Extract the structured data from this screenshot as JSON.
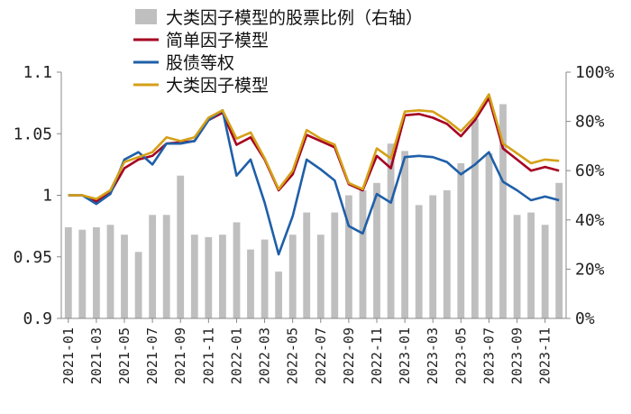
{
  "chart_data": {
    "type": "line",
    "title": "",
    "xlabel": "",
    "ylabel": "",
    "categories": [
      "2021-01",
      "2021-02",
      "2021-03",
      "2021-04",
      "2021-05",
      "2021-06",
      "2021-07",
      "2021-08",
      "2021-09",
      "2021-10",
      "2021-11",
      "2021-12",
      "2022-01",
      "2022-02",
      "2022-03",
      "2022-04",
      "2022-05",
      "2022-06",
      "2022-07",
      "2022-08",
      "2022-09",
      "2022-10",
      "2022-11",
      "2022-12",
      "2023-01",
      "2023-02",
      "2023-03",
      "2023-04",
      "2023-05",
      "2023-06",
      "2023-07",
      "2023-08",
      "2023-09",
      "2023-10",
      "2023-11",
      "2023-12"
    ],
    "x_tick_labels": [
      "2021-01",
      "2021-03",
      "2021-05",
      "2021-07",
      "2021-09",
      "2021-11",
      "2022-01",
      "2022-03",
      "2022-05",
      "2022-07",
      "2022-09",
      "2022-11",
      "2023-01",
      "2023-03",
      "2023-05",
      "2023-07",
      "2023-09",
      "2023-11"
    ],
    "ylim_left": [
      0.9,
      1.1
    ],
    "ylim_right": [
      0,
      100
    ],
    "y_ticks_left": [
      "0.9",
      "0.95",
      "1",
      "1.05",
      "1.1"
    ],
    "y_ticks_right": [
      "0%",
      "20%",
      "40%",
      "60%",
      "80%",
      "100%"
    ],
    "legend_position": "top-left",
    "bar_series": {
      "name": "大类因子模型的股票比例（右轴）",
      "axis": "right",
      "color": "#bfbfbf",
      "values": [
        37,
        36,
        37,
        38,
        34,
        27,
        42,
        42,
        58,
        34,
        33,
        34,
        39,
        28,
        32,
        19,
        34,
        43,
        34,
        43,
        50,
        52,
        55,
        71,
        68,
        46,
        50,
        52,
        63,
        81,
        67,
        87,
        42,
        43,
        38,
        55
      ]
    },
    "series": [
      {
        "name": "简单因子模型",
        "color": "#a50021",
        "values": [
          1.0,
          1.0,
          0.995,
          1.002,
          1.022,
          1.029,
          1.032,
          1.042,
          1.043,
          1.044,
          1.061,
          1.067,
          1.041,
          1.047,
          1.029,
          1.004,
          1.017,
          1.049,
          1.044,
          1.039,
          1.009,
          1.004,
          1.032,
          1.022,
          1.065,
          1.066,
          1.063,
          1.058,
          1.048,
          1.061,
          1.079,
          1.038,
          1.029,
          1.02,
          1.023,
          1.02
        ]
      },
      {
        "name": "股债等权",
        "color": "#1f5fa8",
        "values": [
          1.0,
          1.0,
          0.993,
          1.001,
          1.029,
          1.035,
          1.025,
          1.042,
          1.042,
          1.044,
          1.061,
          1.069,
          1.016,
          1.029,
          0.994,
          0.952,
          0.983,
          1.029,
          1.021,
          1.012,
          0.975,
          0.969,
          1.001,
          0.994,
          1.031,
          1.032,
          1.031,
          1.027,
          1.017,
          1.025,
          1.035,
          1.011,
          1.004,
          0.996,
          0.999,
          0.996
        ]
      },
      {
        "name": "大类因子模型",
        "color": "#d4a017",
        "values": [
          1.0,
          1.0,
          0.997,
          1.004,
          1.027,
          1.031,
          1.035,
          1.047,
          1.044,
          1.047,
          1.063,
          1.069,
          1.046,
          1.051,
          1.03,
          1.005,
          1.02,
          1.053,
          1.046,
          1.041,
          1.01,
          1.005,
          1.038,
          1.03,
          1.068,
          1.069,
          1.068,
          1.061,
          1.052,
          1.064,
          1.082,
          1.042,
          1.034,
          1.026,
          1.029,
          1.028
        ]
      }
    ]
  }
}
